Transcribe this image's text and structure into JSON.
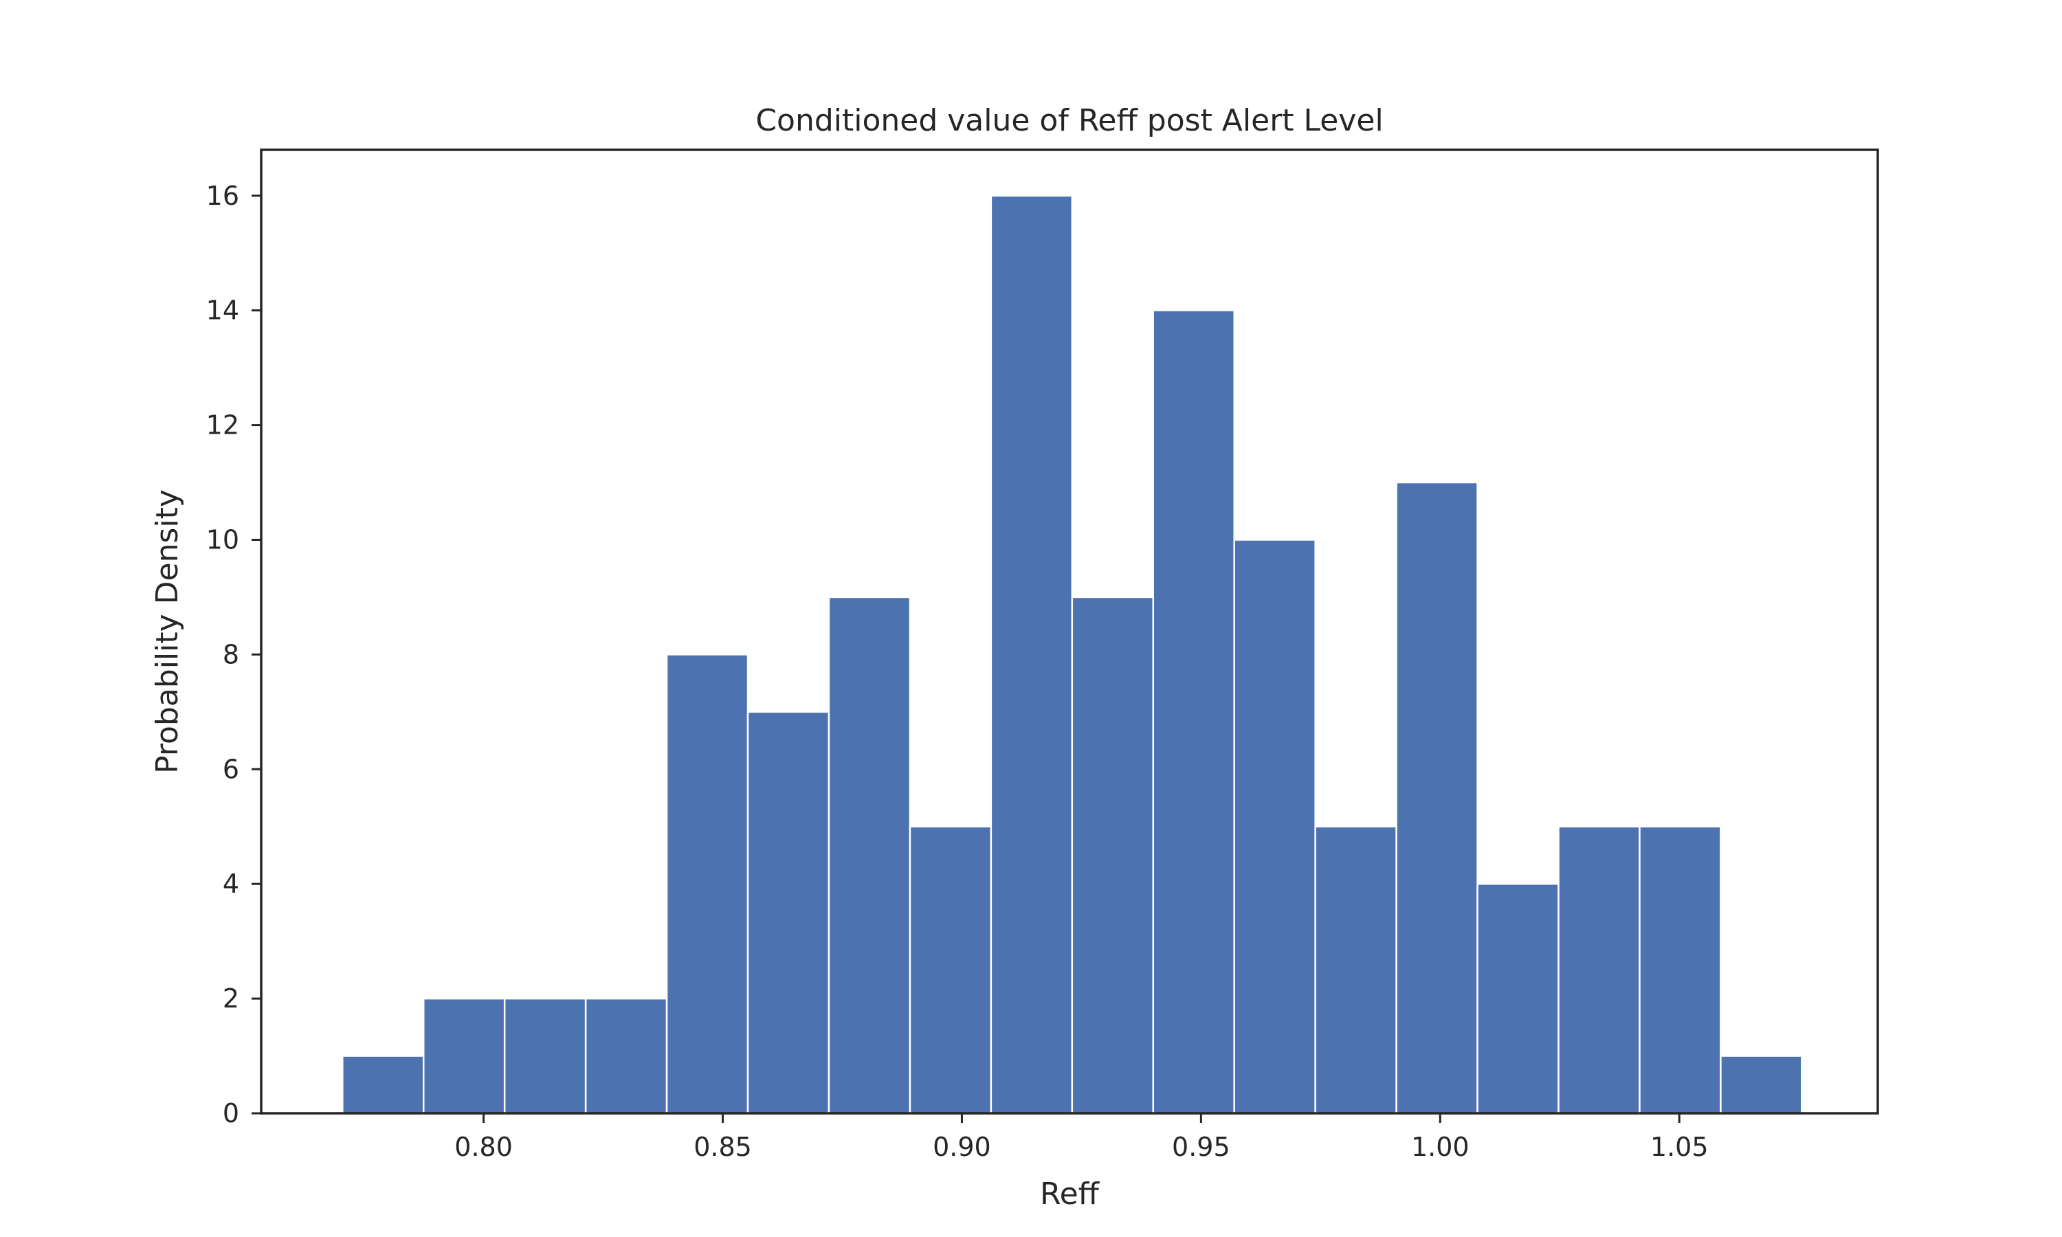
{
  "chart_data": {
    "type": "bar",
    "title": "Conditioned value of Reff post Alert Level",
    "xlabel": "Reff",
    "ylabel": "Probability Density",
    "bar_color": "#4c72b0",
    "grid": false,
    "xlim": [
      0.7535,
      1.0915
    ],
    "ylim": [
      0,
      16.8
    ],
    "bin_start": 0.7705,
    "bin_width": 0.01695,
    "values": [
      1,
      2,
      2,
      2,
      8,
      7,
      9,
      5,
      16,
      9,
      14,
      10,
      5,
      11,
      4,
      5,
      5,
      1
    ],
    "x_ticks": [
      0.8,
      0.85,
      0.9,
      0.95,
      1.0,
      1.05
    ],
    "x_tick_labels": [
      "0.80",
      "0.85",
      "0.90",
      "0.95",
      "1.00",
      "1.05"
    ],
    "y_ticks": [
      0,
      2,
      4,
      6,
      8,
      10,
      12,
      14,
      16
    ],
    "y_tick_labels": [
      "0",
      "2",
      "4",
      "6",
      "8",
      "10",
      "12",
      "14",
      "16"
    ]
  }
}
